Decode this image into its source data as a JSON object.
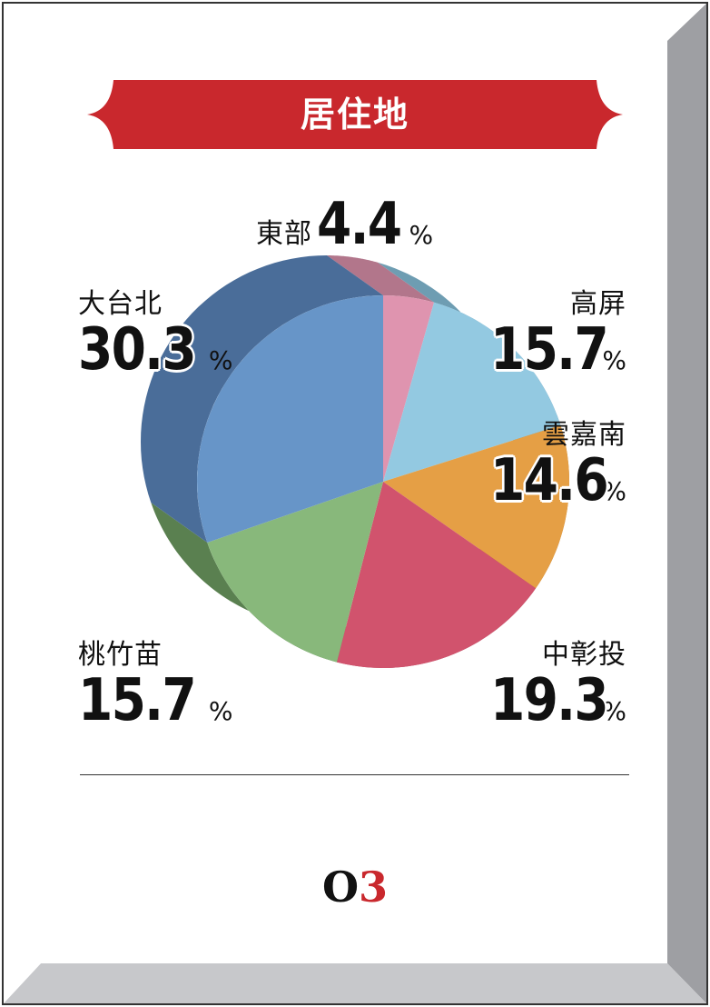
{
  "title": "居住地",
  "logo": {
    "letter": "O",
    "digit": "3"
  },
  "colors": {
    "banner": "#c9282d",
    "border_dark": "#9e9fa3",
    "border_light": "#d2d3d6"
  },
  "chart_data": {
    "type": "pie",
    "title": "居住地",
    "unit": "%",
    "slices": [
      {
        "name": "東部",
        "value": 4.4,
        "color": "#df94af",
        "side": "#b2768b"
      },
      {
        "name": "高屏",
        "value": 15.7,
        "color": "#93c9e1",
        "side": "#6e9db2"
      },
      {
        "name": "雲嘉南",
        "value": 14.6,
        "color": "#e59f45",
        "side": "#b47a33"
      },
      {
        "name": "中彰投",
        "value": 19.3,
        "color": "#d1536d",
        "side": "#a33f54"
      },
      {
        "name": "桃竹苗",
        "value": 15.7,
        "color": "#88b87b",
        "side": "#5a8050"
      },
      {
        "name": "大台北",
        "value": 30.3,
        "color": "#6795c8",
        "side": "#4a6d99"
      }
    ]
  }
}
